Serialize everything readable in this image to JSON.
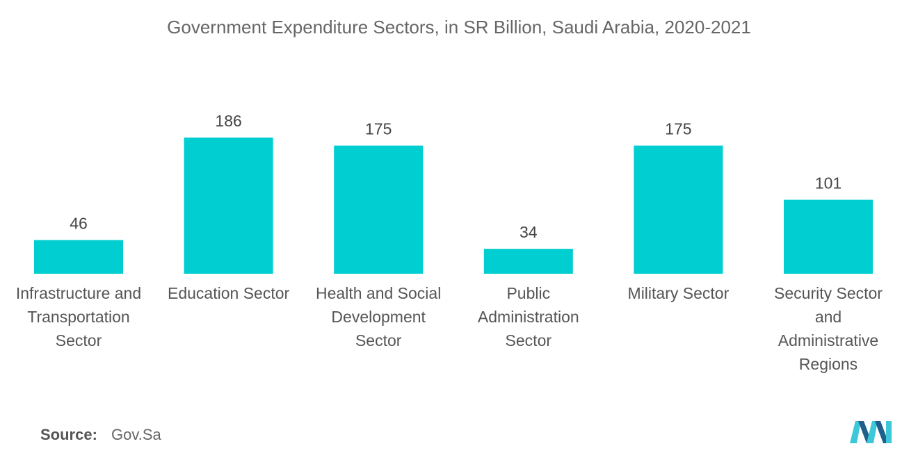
{
  "title": "Government Expenditure Sectors, in SR Billion, Saudi Arabia, 2020-2021",
  "source": {
    "label": "Source:",
    "value": "Gov.Sa"
  },
  "logo_icon": "mordor-intelligence-logo-icon",
  "colors": {
    "bar": "#00CED1",
    "text": "#555555",
    "title": "#666666",
    "logo_dark": "#1F5F8B",
    "logo_light": "#3CC8D8"
  },
  "chart_data": {
    "type": "bar",
    "title": "Government Expenditure Sectors, in SR Billion, Saudi Arabia, 2020-2021",
    "categories": [
      "Infrastructure and\nTransportation\nSector",
      "Education Sector",
      "Health and Social\nDevelopment\nSector",
      "Public\nAdministration\nSector",
      "Military Sector",
      "Security Sector\nand\nAdministrative\nRegions"
    ],
    "values": [
      46,
      186,
      175,
      34,
      175,
      101
    ],
    "data_labels": [
      "46",
      "186",
      "175",
      "34",
      "175",
      "101"
    ],
    "xlabel": "",
    "ylabel": "",
    "ylim": [
      0,
      186
    ],
    "grid": false,
    "legend": "none"
  }
}
